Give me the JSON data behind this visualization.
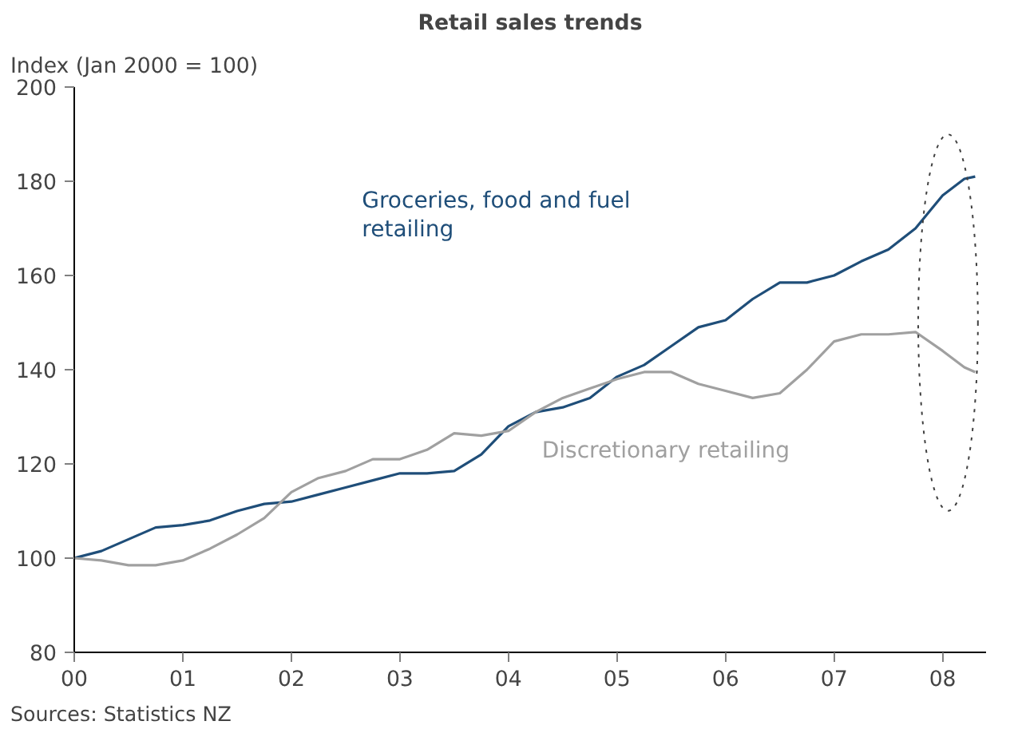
{
  "chart_data": {
    "type": "line",
    "title": "Retail sales trends",
    "ylabel": "Index (Jan 2000 = 100)",
    "x": [
      0,
      0.25,
      0.5,
      0.75,
      1,
      1.25,
      1.5,
      1.75,
      2,
      2.25,
      2.5,
      2.75,
      3,
      3.25,
      3.5,
      3.75,
      4,
      4.25,
      4.5,
      4.75,
      5,
      5.25,
      5.5,
      5.75,
      6,
      6.25,
      6.5,
      6.75,
      7,
      7.25,
      7.5,
      7.75,
      8,
      8.2,
      8.3
    ],
    "series": [
      {
        "name": "Groceries, food and fuel retailing",
        "color": "#1f4e79",
        "values": [
          100,
          101.5,
          104,
          106.5,
          107,
          108,
          110,
          111.5,
          112,
          113.5,
          115,
          116.5,
          118,
          118,
          118.5,
          122,
          128,
          131,
          132,
          134,
          138.5,
          141,
          145,
          149,
          150.5,
          155,
          158.5,
          158.5,
          160,
          163,
          165.5,
          170,
          177,
          180.5,
          181
        ]
      },
      {
        "name": "Discretionary retailing",
        "color": "#a0a0a0",
        "values": [
          100,
          99.5,
          98.5,
          98.5,
          99.5,
          102,
          105,
          108.5,
          114,
          117,
          118.5,
          121,
          121,
          123,
          126.5,
          126,
          127,
          131,
          134,
          136,
          138,
          139.5,
          139.5,
          137,
          135.5,
          134,
          135,
          140,
          146,
          147.5,
          147.5,
          148,
          144,
          140.5,
          139.5
        ]
      }
    ],
    "xlim": [
      0,
      8.4
    ],
    "ylim": [
      80,
      200
    ],
    "xticks": [
      {
        "value": 0,
        "label": "00"
      },
      {
        "value": 1,
        "label": "01"
      },
      {
        "value": 2,
        "label": "02"
      },
      {
        "value": 3,
        "label": "03"
      },
      {
        "value": 4,
        "label": "04"
      },
      {
        "value": 5,
        "label": "05"
      },
      {
        "value": 6,
        "label": "06"
      },
      {
        "value": 7,
        "label": "07"
      },
      {
        "value": 8,
        "label": "08"
      }
    ],
    "yticks": [
      80,
      100,
      120,
      140,
      160,
      180,
      200
    ],
    "grid": false,
    "legend": false,
    "annotations": [
      "Sources: Statistics NZ"
    ]
  }
}
